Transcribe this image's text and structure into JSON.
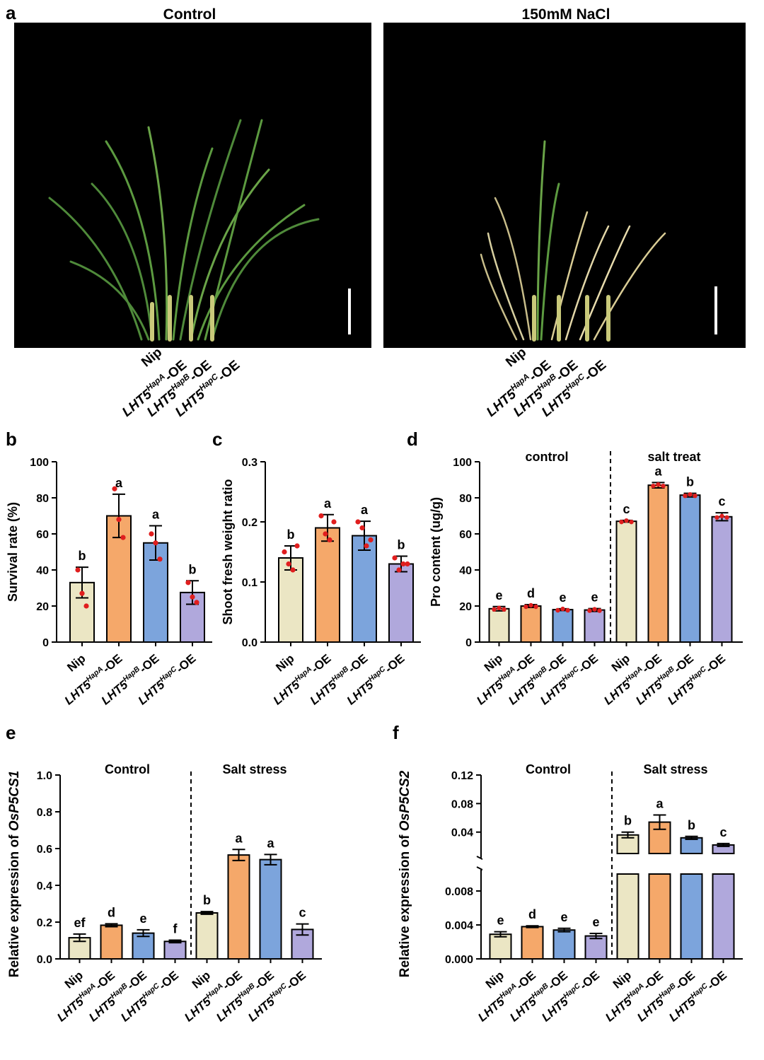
{
  "figure": {
    "panel_letters": {
      "a": "a",
      "b": "b",
      "c": "c",
      "d": "d",
      "e": "e",
      "f": "f"
    },
    "photo_left_title": "Control",
    "photo_right_title": "150mM NaCl",
    "photo_description": "",
    "colors": {
      "nip": "#ebe6c4",
      "hapA": "#f5a86a",
      "hapB": "#7ca4dc",
      "hapC": "#b0a8dc",
      "dot": "#e01e1e",
      "photo_bg": "#000000",
      "scale_bar": "#ffffff"
    }
  },
  "labels": {
    "nip": "Nip",
    "lht5": "LHT5",
    "hapA": "HapA",
    "hapB": "HapB",
    "hapC": "HapC",
    "oe": "-OE"
  },
  "chart_data": [
    {
      "id": "b",
      "type": "bar",
      "categories": [
        "Nip",
        "LHT5HapA-OE",
        "LHT5HapB-OE",
        "LHT5HapC-OE"
      ],
      "values": [
        33,
        70,
        55,
        27.5
      ],
      "errors": [
        8.5,
        12,
        9.5,
        6.5
      ],
      "letters": [
        "b",
        "a",
        "a",
        "b"
      ],
      "points": [
        [
          40,
          27,
          20
        ],
        [
          85,
          68,
          58
        ],
        [
          60,
          55,
          46
        ],
        [
          33,
          25,
          22
        ]
      ],
      "ylabel": "Survival rate (%)",
      "ylim": [
        0,
        100
      ],
      "yticks": [
        "0",
        "20",
        "40",
        "60",
        "80",
        "100"
      ]
    },
    {
      "id": "c",
      "type": "bar",
      "categories": [
        "Nip",
        "LHT5HapA-OE",
        "LHT5HapB-OE",
        "LHT5HapC-OE"
      ],
      "values": [
        0.14,
        0.19,
        0.177,
        0.13
      ],
      "errors": [
        0.02,
        0.022,
        0.024,
        0.013
      ],
      "letters": [
        "b",
        "a",
        "a",
        "b"
      ],
      "points": [
        [
          0.15,
          0.13,
          0.12,
          0.16
        ],
        [
          0.21,
          0.18,
          0.17,
          0.2
        ],
        [
          0.2,
          0.19,
          0.16,
          0.17
        ],
        [
          0.14,
          0.12,
          0.13,
          0.13
        ]
      ],
      "ylabel": "Shoot fresh weight ratio",
      "ylim": [
        0,
        0.3
      ],
      "yticks": [
        "0.0",
        "0.1",
        "0.2",
        "0.3"
      ]
    },
    {
      "id": "d",
      "type": "bar",
      "categories": [
        "Nip",
        "LHT5HapA-OE",
        "LHT5HapB-OE",
        "LHT5HapC-OE",
        "Nip",
        "LHT5HapA-OE",
        "LHT5HapB-OE",
        "LHT5HapC-OE"
      ],
      "groups": [
        "control",
        "salt treat"
      ],
      "values": [
        18.5,
        20,
        18,
        17.8,
        67,
        87,
        81.5,
        69.5
      ],
      "errors": [
        1.2,
        0.8,
        0.5,
        0.8,
        0.5,
        1.5,
        1,
        2.2
      ],
      "letters": [
        "e",
        "d",
        "e",
        "e",
        "c",
        "a",
        "b",
        "c"
      ],
      "ylabel": "Pro content (ug/g)",
      "ylim": [
        0,
        100
      ],
      "yticks": [
        "0",
        "20",
        "40",
        "60",
        "80",
        "100"
      ]
    },
    {
      "id": "e",
      "type": "bar",
      "categories": [
        "Nip",
        "LHT5HapA-OE",
        "LHT5HapB-OE",
        "LHT5HapC-OE",
        "Nip",
        "LHT5HapA-OE",
        "LHT5HapB-OE",
        "LHT5HapC-OE"
      ],
      "groups": [
        "Control",
        "Salt stress"
      ],
      "values": [
        0.115,
        0.183,
        0.14,
        0.095,
        0.25,
        0.565,
        0.54,
        0.16
      ],
      "errors": [
        0.02,
        0.008,
        0.018,
        0.007,
        0.007,
        0.03,
        0.028,
        0.03
      ],
      "letters": [
        "ef",
        "d",
        "e",
        "f",
        "b",
        "a",
        "a",
        "c"
      ],
      "ylabel_prefix": "Relative expression of ",
      "ylabel_gene": "OsP5CS1",
      "ylim": [
        0,
        1.0
      ],
      "yticks": [
        "0.0",
        "0.2",
        "0.4",
        "0.6",
        "0.8",
        "1.0"
      ]
    },
    {
      "id": "f",
      "type": "bar",
      "categories": [
        "Nip",
        "LHT5HapA-OE",
        "LHT5HapB-OE",
        "LHT5HapC-OE",
        "Nip",
        "LHT5HapA-OE",
        "LHT5HapB-OE",
        "LHT5HapC-OE"
      ],
      "groups": [
        "Control",
        "Salt stress"
      ],
      "values": [
        0.0029,
        0.0038,
        0.0034,
        0.0027,
        0.036,
        0.054,
        0.032,
        0.022
      ],
      "errors": [
        0.0003,
        0.0001,
        0.0002,
        0.0003,
        0.004,
        0.01,
        0.002,
        0.002
      ],
      "letters": [
        "e",
        "d",
        "e",
        "e",
        "b",
        "a",
        "b",
        "c"
      ],
      "ylabel_prefix": "Relative expression of ",
      "ylabel_gene": "OsP5CS2",
      "axis_break": true,
      "lower_ylim": [
        0,
        0.01
      ],
      "upper_ylim": [
        0.01,
        0.12
      ],
      "yticks_lower": [
        "0.000",
        "0.004",
        "0.008"
      ],
      "yticks_upper": [
        "0.04",
        "0.08",
        "0.12"
      ]
    }
  ]
}
